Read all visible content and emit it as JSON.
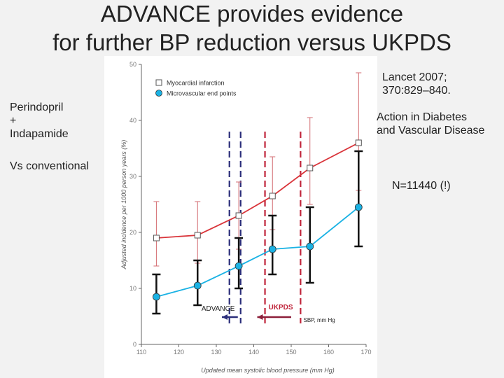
{
  "slide": {
    "title_line1": "ADVANCE provides evidence",
    "title_line2": "for further BP reduction versus UKPDS",
    "treatment": [
      "Perindopril",
      "+",
      "Indapamide"
    ],
    "comparator": "Vs conventional",
    "reference": [
      "Lancet 2007;",
      "370:829–840."
    ],
    "trial_name": [
      "Action in Diabetes",
      "and Vascular Disease"
    ],
    "sample_size": "N=11440 (!)"
  },
  "chart_data": {
    "type": "line",
    "xlabel": "Updated mean systolic blood pressure (mm Hg)",
    "ylabel": "Adjusted incidence per 1000 person years (%)",
    "xlim": [
      110,
      170
    ],
    "ylim": [
      0,
      50
    ],
    "xticks": [
      110,
      120,
      130,
      140,
      150,
      160,
      170
    ],
    "yticks": [
      0,
      10,
      20,
      30,
      40,
      50
    ],
    "legend_position": "top-left",
    "series": [
      {
        "name": "Myocardial infarction",
        "color": "#d9343a",
        "marker": "open-square",
        "x": [
          114,
          125,
          136,
          145,
          155,
          168
        ],
        "y": [
          19,
          19.5,
          23,
          26.5,
          31.5,
          36
        ],
        "ci_low": [
          14,
          14.5,
          17,
          20.5,
          25,
          27.5
        ],
        "ci_high": [
          25.5,
          25.5,
          29,
          33.5,
          40.5,
          48.5
        ]
      },
      {
        "name": "Microvascular end points",
        "color": "#1ab2e4",
        "marker": "filled-circle",
        "x": [
          114,
          125,
          136,
          145,
          155,
          168
        ],
        "y": [
          8.5,
          10.5,
          14,
          17,
          17.5,
          24.5
        ],
        "ci_low": [
          5.5,
          7,
          10,
          12.5,
          11,
          17.5
        ],
        "ci_high": [
          12.5,
          15,
          19,
          23,
          24.5,
          34.5
        ]
      }
    ],
    "annotations": {
      "advance_label": "ADVANCE",
      "ukpds_label": "UKPDS",
      "sbp_label": "SBP, mm Hg",
      "advance_range": [
        130,
        135
      ],
      "ukpds_range": [
        140,
        150
      ]
    }
  }
}
